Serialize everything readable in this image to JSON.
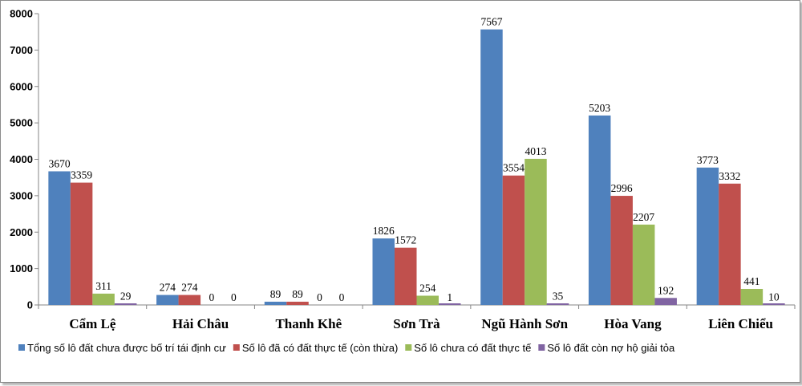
{
  "chart_data": {
    "type": "bar",
    "title": "",
    "xlabel": "",
    "ylabel": "",
    "ylim": [
      0,
      8000
    ],
    "yticks": [
      0,
      1000,
      2000,
      3000,
      4000,
      5000,
      6000,
      7000,
      8000
    ],
    "grid": false,
    "legend_position": "bottom",
    "categories": [
      "Cẩm Lệ",
      "Hải Châu",
      "Thanh Khê",
      "Sơn Trà",
      "Ngũ Hành Sơn",
      "Hòa Vang",
      "Liên Chiểu"
    ],
    "series": [
      {
        "name": "Tổng số lô đất chưa được bố trí tái định cư",
        "color": "#4f81bd",
        "values": [
          3670,
          274,
          89,
          1826,
          7567,
          5203,
          3773
        ]
      },
      {
        "name": "Số lô đã có đất thực tế (còn thừa)",
        "color": "#c0504d",
        "values": [
          3359,
          274,
          89,
          1572,
          3554,
          2996,
          3332
        ]
      },
      {
        "name": "Số lô chưa có đất thực tế",
        "color": "#9bbb59",
        "values": [
          311,
          0,
          0,
          254,
          4013,
          2207,
          441
        ]
      },
      {
        "name": "Số lô đất còn nợ hộ giải tỏa",
        "color": "#8064a2",
        "values": [
          29,
          0,
          0,
          1,
          35,
          192,
          10
        ]
      }
    ]
  }
}
